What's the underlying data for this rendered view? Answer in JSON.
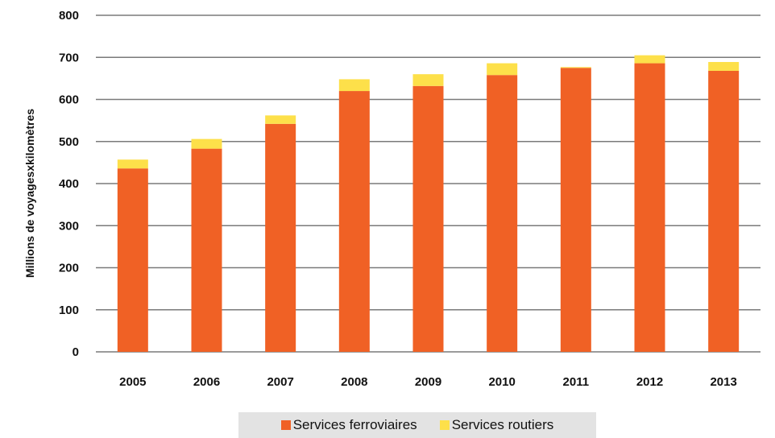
{
  "chart_data": {
    "type": "bar",
    "stacked": true,
    "categories": [
      "2005",
      "2006",
      "2007",
      "2008",
      "2009",
      "2010",
      "2011",
      "2012",
      "2013"
    ],
    "series": [
      {
        "name": "Services ferroviaires",
        "color": "#f06125",
        "values": [
          436,
          483,
          542,
          620,
          632,
          658,
          675,
          686,
          668
        ]
      },
      {
        "name": "Services routiers",
        "color": "#fde04a",
        "values": [
          21,
          23,
          20,
          28,
          28,
          28,
          2,
          19,
          21
        ]
      }
    ],
    "ylabel": "Millions de voyagesxkilomètres",
    "ylim": [
      0,
      800
    ],
    "yticks": [
      "0",
      "100",
      "200",
      "300",
      "400",
      "500",
      "600",
      "700",
      "800"
    ],
    "grid": true,
    "legend_position": "bottom"
  }
}
